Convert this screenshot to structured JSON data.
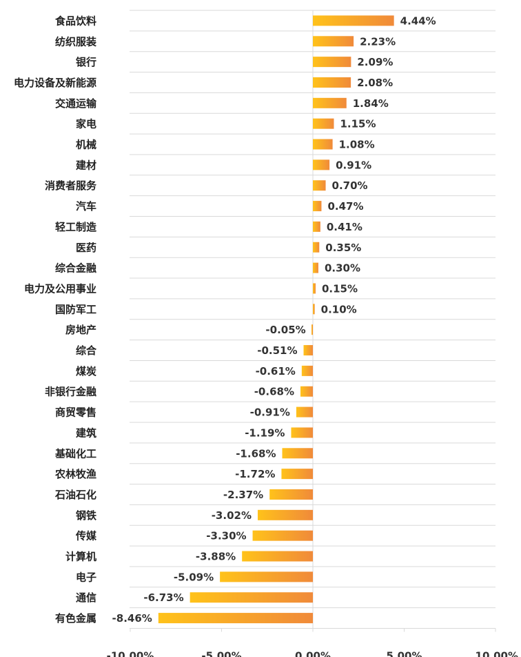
{
  "chart_data": {
    "type": "bar",
    "orientation": "horizontal",
    "title": "",
    "xlabel": "",
    "ylabel": "",
    "xlim": [
      -10,
      10
    ],
    "x_ticks": [
      -10,
      -5,
      0,
      5,
      10
    ],
    "x_tick_labels": [
      "-10.00%",
      "-5.00%",
      "0.00%",
      "5.00%",
      "10.00%"
    ],
    "grid": {
      "horizontal_row_lines": true,
      "vertical": false
    },
    "legend": "none",
    "colors": {
      "bar_start": "#FFC21A",
      "bar_end": "#F08A3A",
      "grid": "#D9D9D9"
    },
    "categories": [
      "食品饮料",
      "纺织服装",
      "银行",
      "电力设备及新能源",
      "交通运输",
      "家电",
      "机械",
      "建材",
      "消费者服务",
      "汽车",
      "轻工制造",
      "医药",
      "综合金融",
      "电力及公用事业",
      "国防军工",
      "房地产",
      "综合",
      "煤炭",
      "非银行金融",
      "商贸零售",
      "建筑",
      "基础化工",
      "农林牧渔",
      "石油石化",
      "钢铁",
      "传媒",
      "计算机",
      "电子",
      "通信",
      "有色金属"
    ],
    "values": [
      4.44,
      2.23,
      2.09,
      2.08,
      1.84,
      1.15,
      1.08,
      0.91,
      0.7,
      0.47,
      0.41,
      0.35,
      0.3,
      0.15,
      0.1,
      -0.05,
      -0.51,
      -0.61,
      -0.68,
      -0.91,
      -1.19,
      -1.68,
      -1.72,
      -2.37,
      -3.02,
      -3.3,
      -3.88,
      -5.09,
      -6.73,
      -8.46
    ],
    "value_labels": [
      "4.44%",
      "2.23%",
      "2.09%",
      "2.08%",
      "1.84%",
      "1.15%",
      "1.08%",
      "0.91%",
      "0.70%",
      "0.47%",
      "0.41%",
      "0.35%",
      "0.30%",
      "0.15%",
      "0.10%",
      "-0.05%",
      "-0.51%",
      "-0.61%",
      "-0.68%",
      "-0.91%",
      "-1.19%",
      "-1.68%",
      "-1.72%",
      "-2.37%",
      "-3.02%",
      "-3.30%",
      "-3.88%",
      "-5.09%",
      "-6.73%",
      "-8.46%"
    ]
  }
}
